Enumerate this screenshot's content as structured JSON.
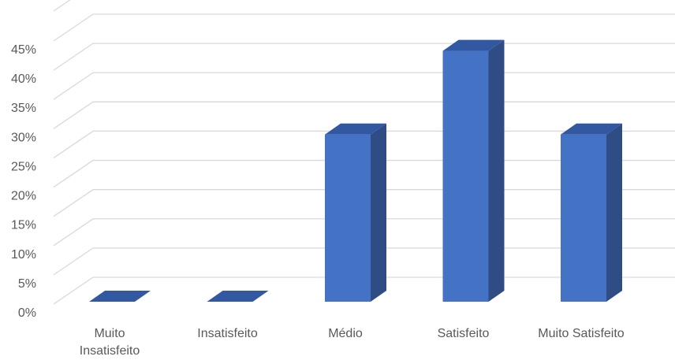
{
  "chart_data": {
    "type": "bar",
    "title": "",
    "xlabel": "",
    "ylabel": "",
    "categories": [
      [
        "Muito",
        "Insatisfeito"
      ],
      [
        "Insatisfeito"
      ],
      [
        "Médio"
      ],
      [
        "Satisfeito"
      ],
      [
        "Muito Satisfeito"
      ]
    ],
    "values": [
      0,
      0,
      28.6,
      42.9,
      28.6
    ],
    "ylim": [
      0,
      45
    ],
    "y_ticks": [
      "0%",
      "5%",
      "10%",
      "15%",
      "20%",
      "25%",
      "30%",
      "35%",
      "40%",
      "45%"
    ],
    "style": "3d-column",
    "grid": true,
    "legend": "none",
    "colors": {
      "front": "#4472c4",
      "side": "#2f4d84",
      "top": "#3358a2",
      "grid": "#d9d9d9",
      "text": "#595959"
    }
  }
}
